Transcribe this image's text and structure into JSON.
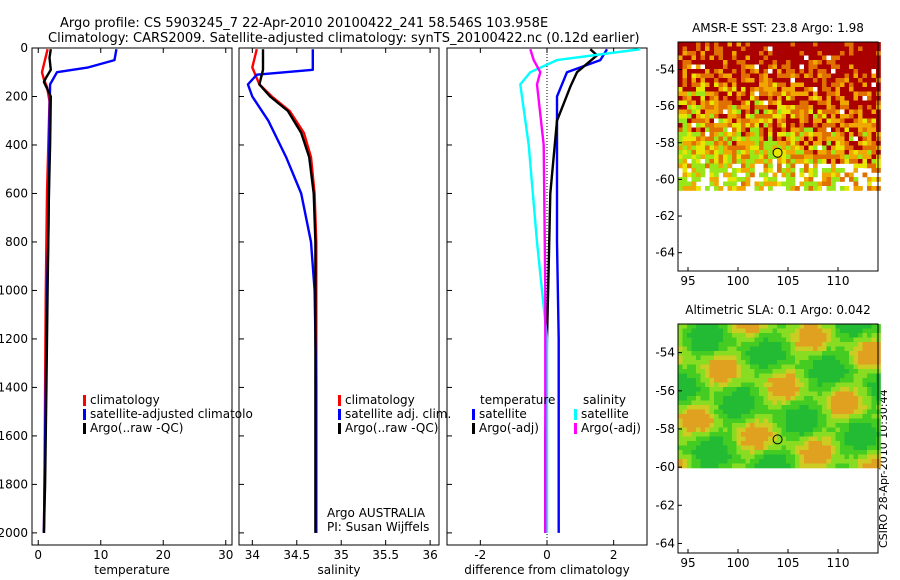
{
  "title_line1": "Argo profile: CS 5903245_7 22-Apr-2010 20100422_241 58.546S 103.958E",
  "title_line2": "Climatology: CARS2009. Satellite-adjusted climatology: synTS_20100422.nc (0.12d earlier)",
  "side_label": "CSIRO 28-Apr-2010 10:30:44",
  "colors": {
    "climatology": "#ff0000",
    "satellite": "#0000ff",
    "argo": "#000000",
    "sal_satellite": "#00ffff",
    "sal_argo": "#ff00ff"
  },
  "chart_data": [
    {
      "type": "line",
      "id": "temperature",
      "xlabel": "temperature",
      "ylabel": "",
      "xlim": [
        -1,
        31
      ],
      "ylim": [
        2050,
        0
      ],
      "xticks": [
        0,
        10,
        20,
        30
      ],
      "xtick_labels": [
        "0",
        "10",
        "20",
        "30"
      ],
      "yticks": [
        0,
        200,
        400,
        600,
        800,
        1000,
        1200,
        1400,
        1600,
        1800,
        2000
      ],
      "ytick_labels": [
        "0",
        "200",
        "400",
        "600",
        "800",
        "1000",
        "1200",
        "1400",
        "1600",
        "1800",
        "2000"
      ],
      "legend": [
        "climatology",
        "satellite-adjusted climatolo",
        "Argo(..raw -QC)"
      ],
      "series": [
        {
          "name": "climatology",
          "color": "#ff0000",
          "x": [
            1.5,
            0.6,
            0.9,
            1.4,
            1.8,
            1.6,
            1.4,
            1.3,
            1.2,
            1.1,
            1.0,
            0.9
          ],
          "depth": [
            5,
            100,
            130,
            160,
            220,
            400,
            600,
            800,
            1000,
            1400,
            1800,
            2000
          ]
        },
        {
          "name": "satellite",
          "color": "#0000ff",
          "x": [
            12.5,
            12.2,
            8.0,
            3.0,
            1.9,
            1.8,
            1.7,
            1.6,
            1.4,
            1.2,
            1.0,
            0.9
          ],
          "depth": [
            5,
            50,
            80,
            100,
            150,
            300,
            600,
            800,
            1000,
            1400,
            1800,
            2000
          ]
        },
        {
          "name": "Argo",
          "color": "#000000",
          "x": [
            2.0,
            1.8,
            2.0,
            1.3,
            0.9,
            2.0,
            1.9,
            1.7,
            1.5,
            1.3,
            1.1,
            0.9
          ],
          "depth": [
            5,
            40,
            90,
            120,
            140,
            200,
            400,
            600,
            1000,
            1400,
            1800,
            2000
          ]
        }
      ]
    },
    {
      "type": "line",
      "id": "salinity",
      "xlabel": "salinity",
      "xlim": [
        33.85,
        36.1
      ],
      "ylim": [
        2050,
        0
      ],
      "xticks": [
        34,
        34.5,
        35,
        35.5,
        36
      ],
      "xtick_labels": [
        "34",
        "34.5",
        "35",
        "35.5",
        "36"
      ],
      "legend": [
        "climatology",
        "satellite adj. clim.",
        "Argo(..raw -QC)"
      ],
      "annotation": [
        "Argo AUSTRALIA",
        "PI: Susan Wijffels"
      ],
      "series": [
        {
          "name": "climatology",
          "color": "#ff0000",
          "x": [
            34.05,
            34.0,
            34.08,
            34.22,
            34.42,
            34.58,
            34.66,
            34.7,
            34.72,
            34.72,
            34.72
          ],
          "depth": [
            5,
            80,
            150,
            200,
            260,
            350,
            450,
            600,
            800,
            1200,
            2000
          ]
        },
        {
          "name": "satellite",
          "color": "#0000ff",
          "x": [
            34.68,
            34.68,
            34.05,
            33.95,
            34.0,
            34.18,
            34.38,
            34.55,
            34.66,
            34.7,
            34.72,
            34.72
          ],
          "depth": [
            5,
            90,
            110,
            150,
            200,
            300,
            450,
            600,
            800,
            1000,
            1400,
            2000
          ]
        },
        {
          "name": "Argo",
          "color": "#000000",
          "x": [
            34.12,
            34.12,
            34.08,
            34.2,
            34.4,
            34.55,
            34.64,
            34.69,
            34.71,
            34.71,
            34.71
          ],
          "depth": [
            5,
            90,
            150,
            200,
            260,
            350,
            450,
            600,
            800,
            1200,
            2000
          ]
        }
      ]
    },
    {
      "type": "line",
      "id": "difference",
      "xlabel": "difference from climatology",
      "xlim": [
        -3,
        3
      ],
      "ylim": [
        2050,
        0
      ],
      "xticks": [
        -2,
        0,
        2
      ],
      "xtick_labels": [
        "-2",
        "0",
        "2"
      ],
      "legend_title_left": "temperature",
      "legend_title_right": "salinity",
      "legend": [
        "satellite",
        "Argo(-adj)",
        "satellite",
        "Argo(-adj)"
      ],
      "series": [
        {
          "name": "satellite",
          "group": "temperature",
          "color": "#0000ff",
          "x": [
            1.8,
            1.6,
            0.6,
            0.3,
            0.3,
            0.3,
            0.3,
            0.35,
            0.35,
            0.35
          ],
          "depth": [
            5,
            50,
            100,
            200,
            400,
            600,
            800,
            1200,
            1600,
            2000
          ]
        },
        {
          "name": "Argo(-adj)",
          "group": "temperature",
          "color": "#000000",
          "x": [
            1.3,
            1.5,
            0.9,
            0.7,
            0.3,
            0.1,
            0.05,
            0.0,
            -0.05,
            -0.05
          ],
          "depth": [
            5,
            30,
            100,
            160,
            300,
            600,
            900,
            1200,
            1600,
            2000
          ]
        },
        {
          "name": "satellite",
          "group": "salinity",
          "color": "#00ffff",
          "x": [
            2.8,
            0.3,
            -0.5,
            -0.8,
            -0.55,
            -0.3,
            -0.15,
            0.0,
            0.0,
            0.0
          ],
          "depth": [
            5,
            50,
            100,
            150,
            400,
            800,
            1000,
            1200,
            1600,
            2000
          ]
        },
        {
          "name": "Argo(-adj)",
          "group": "salinity",
          "color": "#ff00ff",
          "x": [
            -0.5,
            -0.4,
            -0.2,
            -0.3,
            -0.1,
            -0.05,
            -0.05,
            -0.05
          ],
          "depth": [
            5,
            50,
            100,
            150,
            400,
            1000,
            1600,
            2000
          ]
        }
      ]
    },
    {
      "type": "heatmap",
      "id": "sst_map",
      "title": "AMSR-E SST: 23.8 Argo: 1.98",
      "xlim": [
        94,
        114
      ],
      "ylim": [
        -65,
        -52.5
      ],
      "xticks": [
        95,
        100,
        105,
        110
      ],
      "xtick_labels": [
        "95",
        "100",
        "105",
        "110"
      ],
      "yticks": [
        -54,
        -56,
        -58,
        -60,
        -62,
        -64
      ],
      "ytick_labels": [
        "-54",
        "-56",
        "-58",
        "-60",
        "-62",
        "-64"
      ],
      "data_extent_lat": [
        -52.5,
        -60.5
      ],
      "argo_position": {
        "lon": 103.958,
        "lat": -58.546
      }
    },
    {
      "type": "heatmap",
      "id": "sla_map",
      "title": "Altimetric SLA: 0.1 Argo: 0.042",
      "xlim": [
        94,
        114
      ],
      "ylim": [
        -64.5,
        -52.5
      ],
      "xticks": [
        95,
        100,
        105,
        110
      ],
      "xtick_labels": [
        "95",
        "100",
        "105",
        "110"
      ],
      "yticks": [
        -54,
        -56,
        -58,
        -60,
        -62,
        -64
      ],
      "ytick_labels": [
        "-54",
        "-56",
        "-58",
        "-60",
        "-62",
        "-64"
      ],
      "data_extent_lat": [
        -52.5,
        -60
      ],
      "argo_position": {
        "lon": 103.958,
        "lat": -58.546
      }
    }
  ]
}
